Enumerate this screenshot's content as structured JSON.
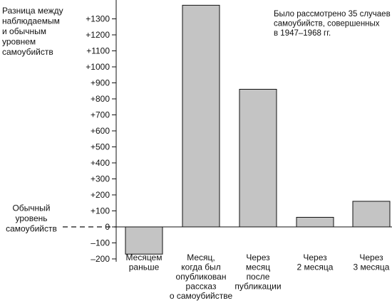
{
  "chart_data": {
    "type": "bar",
    "ylabel": [
      "Разница между",
      "наблюдаемым",
      "и обычным",
      "уровнем",
      "самоубийств"
    ],
    "baseline_label": [
      "Обычный",
      "уровень",
      "самоубийств"
    ],
    "annotation": [
      "Было рассмотрено 35 случаев",
      "самоубийств, совершенных",
      "в 1947–1968 гг."
    ],
    "ylim": [
      -200,
      1400
    ],
    "yticks": [
      {
        "value": 1300,
        "label": "+1300"
      },
      {
        "value": 1200,
        "label": "+1200"
      },
      {
        "value": 1100,
        "label": "+1100"
      },
      {
        "value": 1000,
        "label": "+1000"
      },
      {
        "value": 900,
        "label": "+900"
      },
      {
        "value": 800,
        "label": "+800"
      },
      {
        "value": 700,
        "label": "+700"
      },
      {
        "value": 600,
        "label": "+600"
      },
      {
        "value": 500,
        "label": "+500"
      },
      {
        "value": 400,
        "label": "+400"
      },
      {
        "value": 300,
        "label": "+300"
      },
      {
        "value": 200,
        "label": "+200"
      },
      {
        "value": 100,
        "label": "+100"
      },
      {
        "value": 0,
        "label": "0"
      },
      {
        "value": -100,
        "label": "–100"
      },
      {
        "value": -200,
        "label": "–200"
      }
    ],
    "categories": [
      [
        "Месяцем",
        "раньше"
      ],
      [
        "Месяц,",
        "когда был",
        "опубликован",
        "рассказ",
        "о самоубийстве"
      ],
      [
        "Через",
        "месяц",
        "после",
        "публикации"
      ],
      [
        "Через",
        "2 месяца"
      ],
      [
        "Через",
        "3 месяца"
      ]
    ],
    "values": [
      -170,
      1385,
      860,
      60,
      160
    ],
    "bar_color": "#c4c4c4",
    "grid": false
  }
}
